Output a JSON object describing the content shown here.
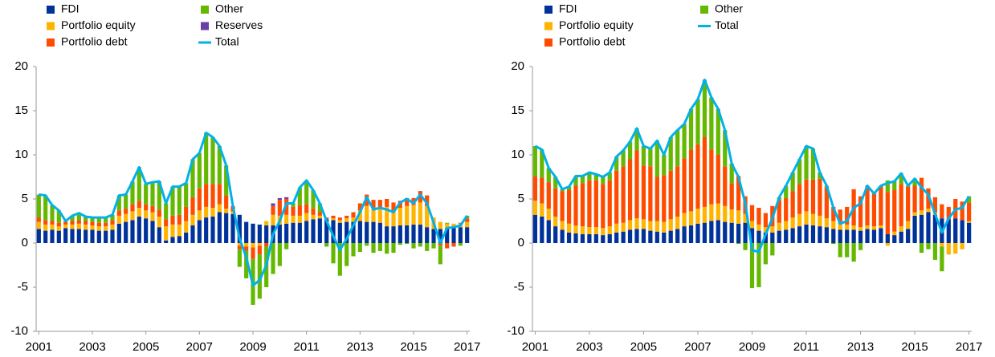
{
  "chart_data": [
    {
      "type": "bar",
      "legend": "top-left",
      "grid": false,
      "xlim": [
        2000.9,
        2017.1
      ],
      "xticks": [
        2001,
        2003,
        2005,
        2007,
        2009,
        2011,
        2013,
        2015,
        2017
      ],
      "ylim": [
        -10,
        20
      ],
      "yticks": [
        -10,
        -5,
        0,
        5,
        10,
        15,
        20
      ],
      "x": [
        2001,
        2001.25,
        2001.5,
        2001.75,
        2002,
        2002.25,
        2002.5,
        2002.75,
        2003,
        2003.25,
        2003.5,
        2003.75,
        2004,
        2004.25,
        2004.5,
        2004.75,
        2005,
        2005.25,
        2005.5,
        2005.75,
        2006,
        2006.25,
        2006.5,
        2006.75,
        2007,
        2007.25,
        2007.5,
        2007.75,
        2008,
        2008.25,
        2008.5,
        2008.75,
        2009,
        2009.25,
        2009.5,
        2009.75,
        2010,
        2010.25,
        2010.5,
        2010.75,
        2011,
        2011.25,
        2011.5,
        2011.75,
        2012,
        2012.25,
        2012.5,
        2012.75,
        2013,
        2013.25,
        2013.5,
        2013.75,
        2014,
        2014.25,
        2014.5,
        2014.75,
        2015,
        2015.25,
        2015.5,
        2015.75,
        2016,
        2016.25,
        2016.5,
        2016.75,
        2017
      ],
      "series": [
        {
          "name": "FDI",
          "color": "#003299",
          "values": [
            1.6,
            1.4,
            1.5,
            1.4,
            1.7,
            1.6,
            1.6,
            1.5,
            1.5,
            1.4,
            1.4,
            1.5,
            2.2,
            2.4,
            2.6,
            3.0,
            2.8,
            2.5,
            1.8,
            0.3,
            0.7,
            0.8,
            1.2,
            2.0,
            2.6,
            2.9,
            3.0,
            3.5,
            3.4,
            3.3,
            3.2,
            2.4,
            2.2,
            2.1,
            2.0,
            2.0,
            2.1,
            2.2,
            2.3,
            2.3,
            2.5,
            2.7,
            2.8,
            2.7,
            2.6,
            2.3,
            2.4,
            2.4,
            2.5,
            2.4,
            2.4,
            2.3,
            1.9,
            1.9,
            2.0,
            2.0,
            2.1,
            2.1,
            1.8,
            1.6,
            1.6,
            1.7,
            1.8,
            1.8,
            1.8
          ]
        },
        {
          "name": "Portfolio equity",
          "color": "#ffb400",
          "values": [
            0.8,
            0.7,
            0.6,
            0.5,
            0.4,
            0.5,
            0.6,
            0.6,
            0.5,
            0.5,
            0.5,
            0.6,
            0.9,
            0.9,
            1.0,
            1.0,
            0.9,
            1.0,
            1.2,
            1.6,
            1.4,
            1.3,
            1.3,
            1.2,
            1.1,
            1.2,
            1.0,
            0.9,
            0.5,
            0.3,
            -0.3,
            -0.4,
            -0.5,
            -0.3,
            0.5,
            1.2,
            1.0,
            1.0,
            0.8,
            0.8,
            0.9,
            0.5,
            0.3,
            0.0,
            0.2,
            0.3,
            0.4,
            0.5,
            1.2,
            1.8,
            1.5,
            1.7,
            2.2,
            1.7,
            2.0,
            2.2,
            2.2,
            2.5,
            2.4,
            1.3,
            0.8,
            0.5,
            0.4,
            0.4,
            0.6
          ]
        },
        {
          "name": "Portfolio debt",
          "color": "#ff4b00",
          "values": [
            0.5,
            0.5,
            0.4,
            0.4,
            0.3,
            0.4,
            0.4,
            0.4,
            0.4,
            0.4,
            0.4,
            0.5,
            0.6,
            0.6,
            0.8,
            0.8,
            0.7,
            0.7,
            0.8,
            0.8,
            1.0,
            1.1,
            1.6,
            2.0,
            2.5,
            2.6,
            2.7,
            2.3,
            1.5,
            0.6,
            -0.4,
            -0.5,
            -1.3,
            -1.0,
            -0.4,
            1.0,
            1.8,
            1.8,
            1.0,
            1.2,
            1.0,
            0.7,
            0.4,
            0.2,
            0.3,
            0.3,
            0.3,
            0.6,
            0.8,
            1.3,
            1.0,
            0.9,
            0.9,
            1.0,
            0.8,
            0.9,
            0.8,
            1.3,
            1.2,
            0.0,
            -0.3,
            -0.6,
            -0.4,
            0.1,
            0.4
          ]
        },
        {
          "name": "Other",
          "color": "#65b800",
          "values": [
            2.6,
            2.8,
            1.8,
            1.4,
            0.1,
            0.6,
            0.8,
            0.5,
            0.5,
            0.6,
            0.6,
            0.6,
            1.7,
            1.6,
            2.6,
            3.8,
            2.3,
            2.7,
            3.2,
            1.8,
            3.3,
            3.2,
            2.7,
            4.3,
            4.0,
            5.8,
            5.3,
            4.3,
            3.4,
            0.0,
            -2.0,
            -3.1,
            -5.2,
            -5.0,
            -4.6,
            -3.5,
            -2.6,
            -0.7,
            0.4,
            2.0,
            2.7,
            2.1,
            1.0,
            -0.4,
            -2.3,
            -3.7,
            -2.6,
            -1.5,
            -1.0,
            -0.3,
            -1.1,
            -0.9,
            -1.2,
            -1.1,
            -0.2,
            -0.1,
            -0.6,
            -0.4,
            -0.9,
            -0.6,
            -2.1,
            0.1,
            0.0,
            -0.3,
            0.3
          ]
        },
        {
          "name": "Reserves",
          "color": "#6b3fa8",
          "values": [
            0,
            0,
            0,
            0,
            0,
            0,
            0,
            0,
            0,
            0,
            0,
            0,
            0,
            0,
            0,
            0,
            0,
            0,
            0,
            0,
            0,
            0,
            0,
            0,
            0,
            0,
            0,
            0,
            0,
            0,
            0,
            0,
            0,
            0,
            0,
            0.3,
            0.2,
            0.2,
            0,
            0,
            0,
            0,
            0,
            0,
            0,
            0,
            0,
            0,
            0,
            0,
            0,
            0,
            0,
            0,
            0,
            0,
            0,
            0,
            0,
            0,
            0,
            0,
            0,
            0,
            0
          ]
        },
        {
          "name": "Total",
          "color": "#00b1ea",
          "kind": "line",
          "values": [
            5.5,
            5.4,
            4.3,
            3.7,
            2.5,
            3.1,
            3.4,
            3.0,
            2.9,
            2.9,
            2.9,
            3.2,
            5.4,
            5.5,
            7.0,
            8.6,
            6.7,
            6.9,
            7.0,
            4.5,
            6.4,
            6.4,
            6.8,
            9.5,
            10.2,
            12.5,
            12.0,
            11.0,
            8.8,
            4.2,
            0.5,
            -1.6,
            -4.8,
            -4.2,
            -2.5,
            1.0,
            2.5,
            4.5,
            4.5,
            6.3,
            7.1,
            6.0,
            4.5,
            2.5,
            0.8,
            -0.8,
            0.5,
            2.0,
            3.5,
            5.2,
            3.8,
            4.0,
            3.8,
            3.5,
            4.6,
            5.0,
            4.5,
            5.5,
            4.5,
            2.3,
            0.0,
            1.7,
            1.8,
            2.0,
            3.1
          ]
        }
      ]
    },
    {
      "type": "bar",
      "legend": "top-left",
      "grid": false,
      "xlim": [
        2000.9,
        2017.1
      ],
      "xticks": [
        2001,
        2003,
        2005,
        2007,
        2009,
        2011,
        2013,
        2015,
        2017
      ],
      "ylim": [
        -10,
        20
      ],
      "yticks": [
        -10,
        -5,
        0,
        5,
        10,
        15,
        20
      ],
      "x": [
        2001,
        2001.25,
        2001.5,
        2001.75,
        2002,
        2002.25,
        2002.5,
        2002.75,
        2003,
        2003.25,
        2003.5,
        2003.75,
        2004,
        2004.25,
        2004.5,
        2004.75,
        2005,
        2005.25,
        2005.5,
        2005.75,
        2006,
        2006.25,
        2006.5,
        2006.75,
        2007,
        2007.25,
        2007.5,
        2007.75,
        2008,
        2008.25,
        2008.5,
        2008.75,
        2009,
        2009.25,
        2009.5,
        2009.75,
        2010,
        2010.25,
        2010.5,
        2010.75,
        2011,
        2011.25,
        2011.5,
        2011.75,
        2012,
        2012.25,
        2012.5,
        2012.75,
        2013,
        2013.25,
        2013.5,
        2013.75,
        2014,
        2014.25,
        2014.5,
        2014.75,
        2015,
        2015.25,
        2015.5,
        2015.75,
        2016,
        2016.25,
        2016.5,
        2016.75,
        2017
      ],
      "series": [
        {
          "name": "FDI",
          "color": "#003299",
          "values": [
            3.2,
            3.0,
            2.6,
            1.9,
            1.5,
            1.2,
            1.1,
            1.0,
            1.0,
            1.0,
            0.9,
            1.0,
            1.2,
            1.3,
            1.5,
            1.6,
            1.6,
            1.4,
            1.3,
            1.2,
            1.4,
            1.6,
            1.9,
            2.0,
            2.2,
            2.3,
            2.5,
            2.6,
            2.4,
            2.3,
            2.2,
            2.3,
            1.7,
            1.4,
            1.2,
            1.2,
            1.4,
            1.5,
            1.7,
            1.9,
            2.1,
            2.0,
            1.9,
            1.8,
            1.6,
            1.5,
            1.5,
            1.5,
            1.4,
            1.6,
            1.5,
            1.7,
            1.0,
            0.9,
            1.3,
            1.6,
            3.1,
            3.2,
            3.5,
            3.2,
            2.8,
            2.7,
            2.8,
            2.6,
            2.3
          ]
        },
        {
          "name": "Portfolio equity",
          "color": "#ffb400",
          "values": [
            1.6,
            1.5,
            1.3,
            1.1,
            1.0,
            1.0,
            0.9,
            0.9,
            0.8,
            0.8,
            0.8,
            0.9,
            1.0,
            1.0,
            1.1,
            1.2,
            1.1,
            1.1,
            1.2,
            1.2,
            1.3,
            1.4,
            1.5,
            1.6,
            1.7,
            1.8,
            1.9,
            1.9,
            1.8,
            1.5,
            1.5,
            1.0,
            0.8,
            0.7,
            0.6,
            0.7,
            0.9,
            1.0,
            1.2,
            1.4,
            1.5,
            1.3,
            1.2,
            1.0,
            0.9,
            0.7,
            0.6,
            0.5,
            0.4,
            0.4,
            0.4,
            0.3,
            -0.3,
            0.4,
            0.6,
            0.9,
            0.4,
            0.5,
            0.4,
            0.3,
            -0.4,
            -1.3,
            -1.2,
            -0.7,
            0.2
          ]
        },
        {
          "name": "Portfolio debt",
          "color": "#ff4b00",
          "values": [
            2.8,
            2.9,
            3.0,
            3.2,
            3.4,
            3.8,
            4.5,
            4.9,
            5.3,
            5.3,
            5.0,
            5.2,
            6.0,
            6.4,
            6.9,
            7.7,
            6.1,
            6.2,
            5.0,
            5.3,
            5.5,
            5.7,
            6.2,
            7.0,
            7.3,
            7.9,
            6.2,
            5.5,
            4.5,
            3.0,
            3.9,
            2.0,
            1.8,
            1.9,
            1.6,
            2.3,
            2.6,
            2.6,
            3.0,
            3.4,
            3.6,
            3.9,
            4.2,
            3.5,
            1.6,
            1.6,
            2.0,
            4.1,
            3.5,
            4.5,
            3.7,
            4.5,
            4.8,
            4.7,
            4.8,
            3.9,
            3.0,
            3.7,
            2.3,
            1.7,
            1.6,
            1.4,
            2.2,
            2.1,
            2.1
          ]
        },
        {
          "name": "Other",
          "color": "#65b800",
          "values": [
            3.4,
            3.2,
            1.6,
            1.3,
            0.2,
            0.4,
            1.1,
            0.8,
            0.9,
            0.7,
            0.8,
            0.9,
            1.6,
            1.8,
            2.0,
            2.5,
            2.2,
            2.0,
            4.1,
            2.3,
            3.8,
            4.1,
            3.9,
            4.6,
            5.1,
            6.5,
            5.9,
            5.2,
            4.1,
            2.2,
            -0.1,
            -0.8,
            -5.1,
            -5.0,
            -2.4,
            -1.4,
            0.3,
            1.4,
            2.1,
            2.8,
            3.8,
            3.5,
            0.7,
            0.2,
            -0.1,
            -1.6,
            -1.6,
            -2.1,
            -0.8,
            0.0,
            0.0,
            0.0,
            1.3,
            1.0,
            1.2,
            0.1,
            0.8,
            -1.1,
            -0.7,
            -1.9,
            -2.8,
            0.0,
            0.0,
            0.0,
            0.7
          ]
        },
        {
          "name": "Total",
          "color": "#00b1ea",
          "kind": "line",
          "values": [
            11.0,
            10.6,
            8.5,
            7.5,
            6.1,
            6.4,
            7.6,
            7.6,
            8.0,
            7.8,
            7.5,
            8.0,
            9.8,
            10.5,
            11.5,
            13.0,
            11.0,
            10.7,
            11.6,
            10.0,
            12.0,
            12.8,
            13.5,
            15.2,
            16.3,
            18.5,
            16.5,
            15.2,
            12.8,
            9.0,
            7.5,
            4.5,
            -0.8,
            -1.0,
            1.0,
            2.8,
            5.2,
            6.5,
            8.0,
            9.5,
            11.0,
            10.7,
            8.0,
            6.5,
            4.0,
            2.2,
            2.5,
            4.0,
            4.5,
            6.5,
            5.6,
            6.5,
            6.8,
            7.0,
            7.9,
            6.5,
            7.3,
            6.3,
            5.5,
            3.3,
            1.2,
            2.8,
            3.8,
            4.0,
            5.3
          ]
        }
      ]
    }
  ]
}
